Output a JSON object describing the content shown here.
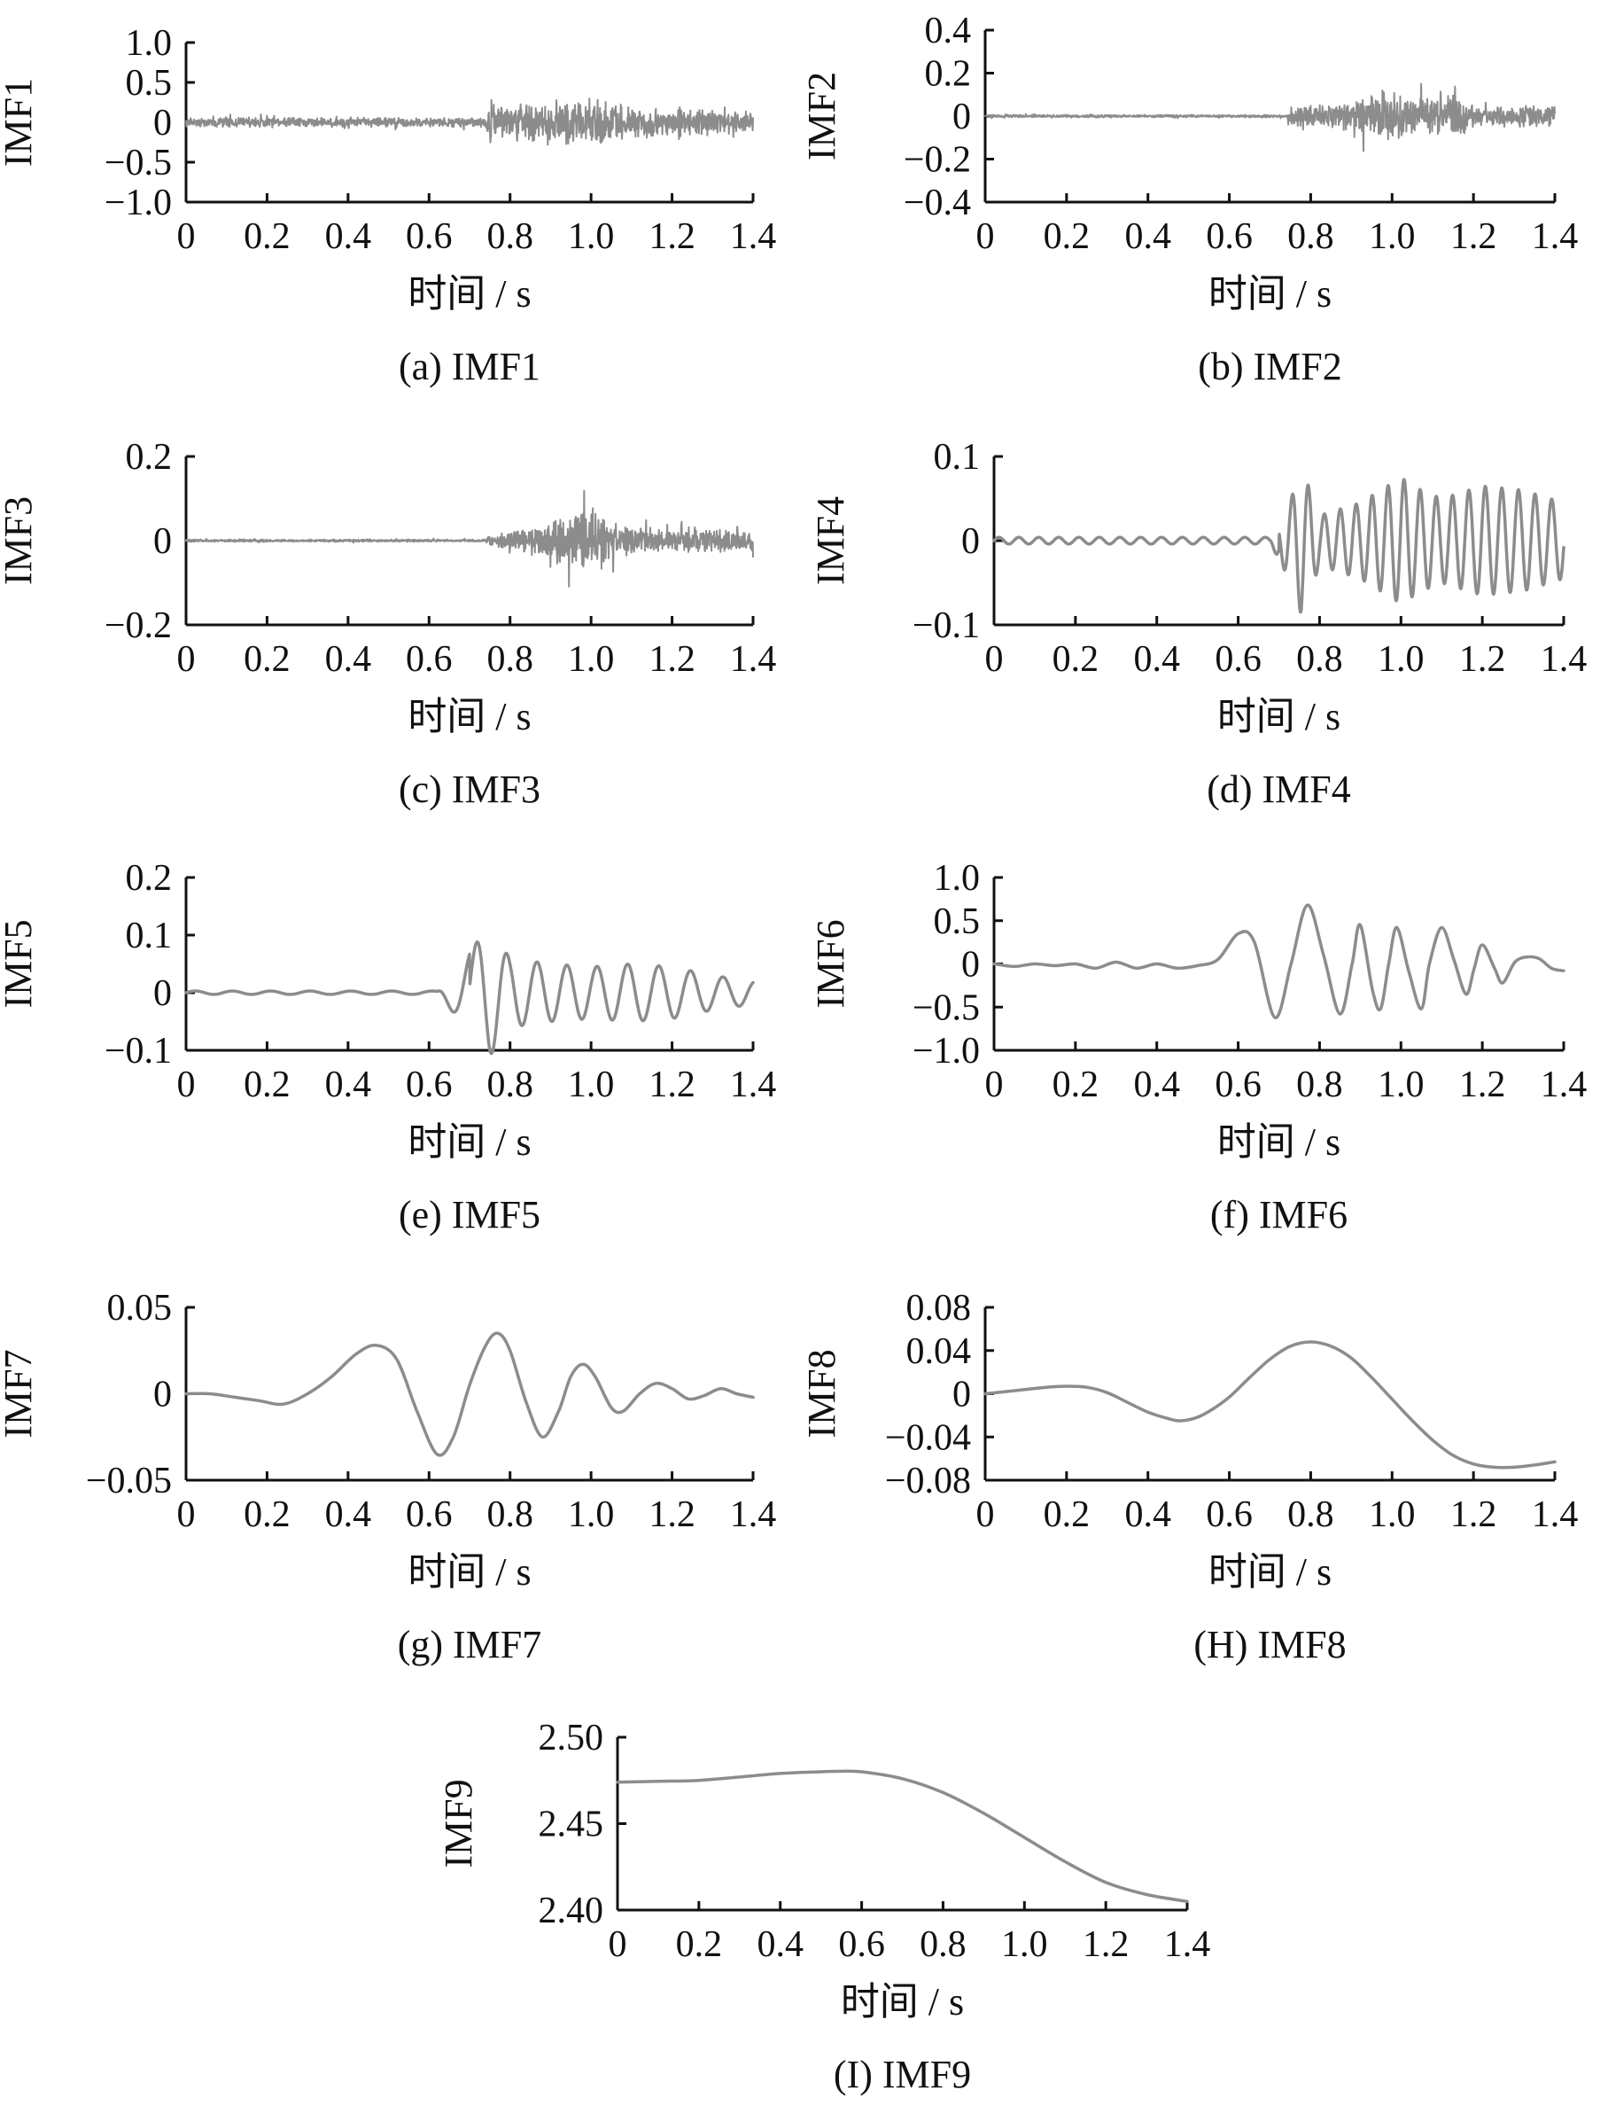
{
  "figure": {
    "xlabel": "时间 / s",
    "line_color": "#8c8c8c",
    "axis_color": "#111111"
  },
  "chart_data": [
    {
      "id": "a",
      "type": "line",
      "caption": "(a)  IMF1",
      "ylabel": "IMF1",
      "xlabel": "时间 / s",
      "xlim": [
        0,
        1.4
      ],
      "ylim": [
        -1.0,
        1.0
      ],
      "xticks": [
        "0",
        "0.2",
        "0.4",
        "0.6",
        "0.8",
        "1.0",
        "1.2",
        "1.4"
      ],
      "yticks": [
        {
          "v": 1.0,
          "t": "1.0"
        },
        {
          "v": 0.5,
          "t": "0.5"
        },
        {
          "v": 0,
          "t": "0"
        },
        {
          "v": -0.5,
          "t": "−0.5"
        },
        {
          "v": -1.0,
          "t": "−1.0"
        }
      ],
      "envelope": [
        [
          0,
          0.12
        ],
        [
          0.74,
          0.12
        ],
        [
          0.75,
          0.55
        ],
        [
          0.8,
          0.45
        ],
        [
          0.9,
          0.55
        ],
        [
          1.0,
          0.6
        ],
        [
          1.1,
          0.4
        ],
        [
          1.2,
          0.35
        ],
        [
          1.3,
          0.3
        ],
        [
          1.4,
          0.28
        ]
      ],
      "signal": "noise"
    },
    {
      "id": "b",
      "type": "line",
      "caption": "(b)  IMF2",
      "ylabel": "IMF2",
      "xlabel": "时间 / s",
      "xlim": [
        0,
        1.4
      ],
      "ylim": [
        -0.4,
        0.4
      ],
      "xticks": [
        "0",
        "0.2",
        "0.4",
        "0.6",
        "0.8",
        "1.0",
        "1.2",
        "1.4"
      ],
      "yticks": [
        {
          "v": 0.4,
          "t": "0.4"
        },
        {
          "v": 0.2,
          "t": "0.2"
        },
        {
          "v": 0,
          "t": "0"
        },
        {
          "v": -0.2,
          "t": "−0.2"
        },
        {
          "v": -0.4,
          "t": "−0.4"
        }
      ],
      "envelope": [
        [
          0,
          0.012
        ],
        [
          0.74,
          0.012
        ],
        [
          0.75,
          0.1
        ],
        [
          0.85,
          0.12
        ],
        [
          0.92,
          0.18
        ],
        [
          1.0,
          0.24
        ],
        [
          1.05,
          0.15
        ],
        [
          1.15,
          0.2
        ],
        [
          1.2,
          0.1
        ],
        [
          1.4,
          0.09
        ]
      ],
      "signal": "noise"
    },
    {
      "id": "c",
      "type": "line",
      "caption": "(c)  IMF3",
      "ylabel": "IMF3",
      "xlabel": "时间 / s",
      "xlim": [
        0,
        1.4
      ],
      "ylim": [
        -0.2,
        0.2
      ],
      "xticks": [
        "0",
        "0.2",
        "0.4",
        "0.6",
        "0.8",
        "1.0",
        "1.2",
        "1.4"
      ],
      "yticks": [
        {
          "v": 0.2,
          "t": "0.2"
        },
        {
          "v": 0,
          "t": "0"
        },
        {
          "v": -0.2,
          "t": "−0.2"
        }
      ],
      "envelope": [
        [
          0,
          0.006
        ],
        [
          0.74,
          0.006
        ],
        [
          0.75,
          0.03
        ],
        [
          0.85,
          0.06
        ],
        [
          0.92,
          0.15
        ],
        [
          0.97,
          0.14
        ],
        [
          1.0,
          0.15
        ],
        [
          1.1,
          0.06
        ],
        [
          1.2,
          0.05
        ],
        [
          1.3,
          0.06
        ],
        [
          1.4,
          0.05
        ]
      ],
      "signal": "noise"
    },
    {
      "id": "d",
      "type": "line",
      "caption": "(d)  IMF4",
      "ylabel": "IMF4",
      "xlabel": "时间 / s",
      "xlim": [
        0,
        1.4
      ],
      "ylim": [
        -0.1,
        0.1
      ],
      "xticks": [
        "0",
        "0.2",
        "0.4",
        "0.6",
        "0.8",
        "1.0",
        "1.2",
        "1.4"
      ],
      "yticks": [
        {
          "v": 0.1,
          "t": "0.1"
        },
        {
          "v": 0,
          "t": "0"
        },
        {
          "v": -0.1,
          "t": "−0.1"
        }
      ],
      "envelope": [
        [
          0,
          0.004
        ],
        [
          0.68,
          0.004
        ],
        [
          0.73,
          0.05
        ],
        [
          0.755,
          0.088
        ],
        [
          0.8,
          0.03
        ],
        [
          0.9,
          0.045
        ],
        [
          1.0,
          0.075
        ],
        [
          1.05,
          0.06
        ],
        [
          1.1,
          0.05
        ],
        [
          1.2,
          0.065
        ],
        [
          1.3,
          0.06
        ],
        [
          1.4,
          0.045
        ]
      ],
      "signal": "osc",
      "freq": 25
    },
    {
      "id": "e",
      "type": "line",
      "caption": "(e)  IMF5",
      "ylabel": "IMF5",
      "xlabel": "时间 / s",
      "xlim": [
        0,
        1.4
      ],
      "ylim": [
        -0.1,
        0.2
      ],
      "xticks": [
        "0",
        "0.2",
        "0.4",
        "0.6",
        "0.8",
        "1.0",
        "1.2",
        "1.4"
      ],
      "yticks": [
        {
          "v": 0.2,
          "t": "0.2"
        },
        {
          "v": 0.1,
          "t": "0.1"
        },
        {
          "v": 0,
          "t": "0"
        },
        {
          "v": -0.1,
          "t": "−0.1"
        }
      ],
      "envelope": [
        [
          0,
          0.003
        ],
        [
          0.62,
          0.003
        ],
        [
          0.68,
          0.05
        ],
        [
          0.73,
          0.1
        ],
        [
          0.75,
          0.11
        ],
        [
          0.8,
          0.06
        ],
        [
          0.9,
          0.05
        ],
        [
          1.0,
          0.045
        ],
        [
          1.1,
          0.05
        ],
        [
          1.2,
          0.045
        ],
        [
          1.3,
          0.03
        ],
        [
          1.4,
          0.02
        ]
      ],
      "signal": "osc",
      "freq": 13
    },
    {
      "id": "f",
      "type": "line",
      "caption": "(f)  IMF6",
      "ylabel": "IMF6",
      "xlabel": "时间 / s",
      "xlim": [
        0,
        1.4
      ],
      "ylim": [
        -1.0,
        1.0
      ],
      "xticks": [
        "0",
        "0.2",
        "0.4",
        "0.6",
        "0.8",
        "1.0",
        "1.2",
        "1.4"
      ],
      "yticks": [
        {
          "v": 1.0,
          "t": "1.0"
        },
        {
          "v": 0.5,
          "t": "0.5"
        },
        {
          "v": 0,
          "t": "0"
        },
        {
          "v": -0.5,
          "t": "−0.5"
        },
        {
          "v": -1.0,
          "t": "−1.0"
        }
      ],
      "points": [
        [
          0,
          0
        ],
        [
          0.05,
          -0.03
        ],
        [
          0.1,
          0.0
        ],
        [
          0.15,
          -0.02
        ],
        [
          0.2,
          0.0
        ],
        [
          0.25,
          -0.05
        ],
        [
          0.3,
          0.02
        ],
        [
          0.35,
          -0.05
        ],
        [
          0.4,
          0.0
        ],
        [
          0.45,
          -0.05
        ],
        [
          0.5,
          -0.02
        ],
        [
          0.55,
          0.05
        ],
        [
          0.6,
          0.35
        ],
        [
          0.64,
          0.25
        ],
        [
          0.69,
          -0.62
        ],
        [
          0.73,
          0.0
        ],
        [
          0.77,
          0.68
        ],
        [
          0.81,
          0.1
        ],
        [
          0.85,
          -0.58
        ],
        [
          0.88,
          0.0
        ],
        [
          0.9,
          0.45
        ],
        [
          0.93,
          -0.3
        ],
        [
          0.95,
          -0.52
        ],
        [
          0.97,
          0.0
        ],
        [
          0.99,
          0.42
        ],
        [
          1.02,
          -0.1
        ],
        [
          1.05,
          -0.52
        ],
        [
          1.07,
          0.0
        ],
        [
          1.1,
          0.42
        ],
        [
          1.13,
          0.05
        ],
        [
          1.16,
          -0.35
        ],
        [
          1.18,
          -0.05
        ],
        [
          1.2,
          0.22
        ],
        [
          1.23,
          -0.05
        ],
        [
          1.25,
          -0.22
        ],
        [
          1.28,
          0.02
        ],
        [
          1.31,
          0.08
        ],
        [
          1.34,
          0.06
        ],
        [
          1.37,
          -0.05
        ],
        [
          1.4,
          -0.08
        ]
      ]
    },
    {
      "id": "g",
      "type": "line",
      "caption": "(g)  IMF7",
      "ylabel": "IMF7",
      "xlabel": "时间 / s",
      "xlim": [
        0,
        1.4
      ],
      "ylim": [
        -0.05,
        0.05
      ],
      "xticks": [
        "0",
        "0.2",
        "0.4",
        "0.6",
        "0.8",
        "1.0",
        "1.2",
        "1.4"
      ],
      "yticks": [
        {
          "v": 0.05,
          "t": "0.05"
        },
        {
          "v": 0,
          "t": "0"
        },
        {
          "v": -0.05,
          "t": "−0.05"
        }
      ],
      "points": [
        [
          0,
          0.0
        ],
        [
          0.06,
          0.0
        ],
        [
          0.12,
          -0.002
        ],
        [
          0.18,
          -0.004
        ],
        [
          0.24,
          -0.006
        ],
        [
          0.3,
          0.0
        ],
        [
          0.36,
          0.01
        ],
        [
          0.42,
          0.023
        ],
        [
          0.47,
          0.028
        ],
        [
          0.52,
          0.02
        ],
        [
          0.57,
          -0.01
        ],
        [
          0.62,
          -0.035
        ],
        [
          0.66,
          -0.025
        ],
        [
          0.7,
          0.005
        ],
        [
          0.74,
          0.028
        ],
        [
          0.77,
          0.035
        ],
        [
          0.8,
          0.025
        ],
        [
          0.84,
          -0.005
        ],
        [
          0.88,
          -0.025
        ],
        [
          0.92,
          -0.01
        ],
        [
          0.95,
          0.01
        ],
        [
          0.98,
          0.017
        ],
        [
          1.01,
          0.01
        ],
        [
          1.05,
          -0.008
        ],
        [
          1.08,
          -0.01
        ],
        [
          1.12,
          0.0
        ],
        [
          1.16,
          0.006
        ],
        [
          1.2,
          0.003
        ],
        [
          1.24,
          -0.003
        ],
        [
          1.28,
          -0.001
        ],
        [
          1.32,
          0.003
        ],
        [
          1.36,
          0.0
        ],
        [
          1.4,
          -0.002
        ]
      ]
    },
    {
      "id": "h",
      "type": "line",
      "caption": "(H)  IMF8",
      "ylabel": "IMF8",
      "xlabel": "时间 / s",
      "xlim": [
        0,
        1.4
      ],
      "ylim": [
        -0.08,
        0.08
      ],
      "xticks": [
        "0",
        "0.2",
        "0.4",
        "0.6",
        "0.8",
        "1.0",
        "1.2",
        "1.4"
      ],
      "yticks": [
        {
          "v": 0.08,
          "t": "0.08"
        },
        {
          "v": 0.04,
          "t": "0.04"
        },
        {
          "v": 0,
          "t": "0"
        },
        {
          "v": -0.04,
          "t": "−0.04"
        },
        {
          "v": -0.08,
          "t": "−0.08"
        }
      ],
      "points": [
        [
          0,
          0.0
        ],
        [
          0.05,
          0.002
        ],
        [
          0.1,
          0.004
        ],
        [
          0.15,
          0.006
        ],
        [
          0.2,
          0.007
        ],
        [
          0.25,
          0.006
        ],
        [
          0.3,
          0.001
        ],
        [
          0.35,
          -0.008
        ],
        [
          0.4,
          -0.017
        ],
        [
          0.45,
          -0.023
        ],
        [
          0.48,
          -0.025
        ],
        [
          0.52,
          -0.022
        ],
        [
          0.56,
          -0.014
        ],
        [
          0.6,
          -0.003
        ],
        [
          0.65,
          0.015
        ],
        [
          0.7,
          0.032
        ],
        [
          0.75,
          0.044
        ],
        [
          0.8,
          0.048
        ],
        [
          0.85,
          0.044
        ],
        [
          0.9,
          0.033
        ],
        [
          0.95,
          0.015
        ],
        [
          1.0,
          -0.005
        ],
        [
          1.05,
          -0.025
        ],
        [
          1.1,
          -0.043
        ],
        [
          1.15,
          -0.057
        ],
        [
          1.2,
          -0.065
        ],
        [
          1.25,
          -0.068
        ],
        [
          1.3,
          -0.068
        ],
        [
          1.35,
          -0.066
        ],
        [
          1.4,
          -0.063
        ]
      ]
    },
    {
      "id": "i",
      "type": "line",
      "caption": "(I)  IMF9",
      "ylabel": "IMF9",
      "xlabel": "时间 / s",
      "xlim": [
        0,
        1.4
      ],
      "ylim": [
        2.4,
        2.5
      ],
      "xticks": [
        "0",
        "0.2",
        "0.4",
        "0.6",
        "0.8",
        "1.0",
        "1.2",
        "1.4"
      ],
      "yticks": [
        {
          "v": 2.5,
          "t": "2.50"
        },
        {
          "v": 2.45,
          "t": "2.45"
        },
        {
          "v": 2.4,
          "t": "2.40"
        }
      ],
      "points": [
        [
          0,
          2.474
        ],
        [
          0.1,
          2.4745
        ],
        [
          0.2,
          2.475
        ],
        [
          0.3,
          2.477
        ],
        [
          0.4,
          2.479
        ],
        [
          0.5,
          2.48
        ],
        [
          0.55,
          2.4803
        ],
        [
          0.6,
          2.48
        ],
        [
          0.7,
          2.476
        ],
        [
          0.8,
          2.468
        ],
        [
          0.9,
          2.456
        ],
        [
          1.0,
          2.442
        ],
        [
          1.1,
          2.428
        ],
        [
          1.2,
          2.416
        ],
        [
          1.3,
          2.409
        ],
        [
          1.4,
          2.405
        ]
      ]
    }
  ]
}
